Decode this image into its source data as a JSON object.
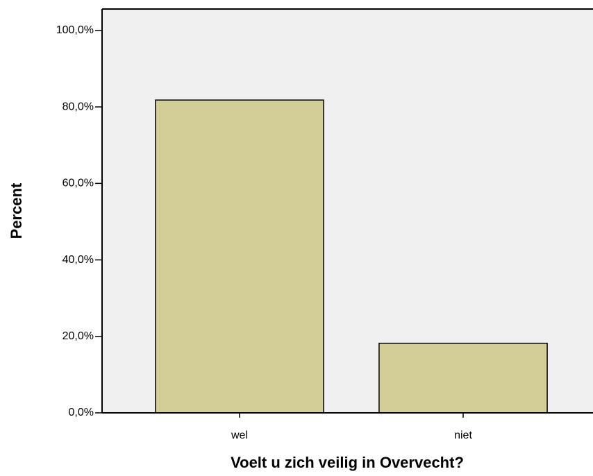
{
  "chart_data": {
    "type": "bar",
    "x_label": "Voelt u zich veilig in Overvecht?",
    "y_label": "Percent",
    "categories": [
      "wel",
      "niet"
    ],
    "values": [
      81.8,
      18.2
    ],
    "color": "#d3ce97",
    "ylim": [
      0,
      105.6
    ],
    "yticks": [
      {
        "value": 0,
        "label": "0,0%"
      },
      {
        "value": 20,
        "label": "20,0%"
      },
      {
        "value": 40,
        "label": "40,0%"
      },
      {
        "value": 60,
        "label": "60,0%"
      },
      {
        "value": 80,
        "label": "80,0%"
      },
      {
        "value": 100,
        "label": "100,0%"
      }
    ],
    "grid": false
  }
}
